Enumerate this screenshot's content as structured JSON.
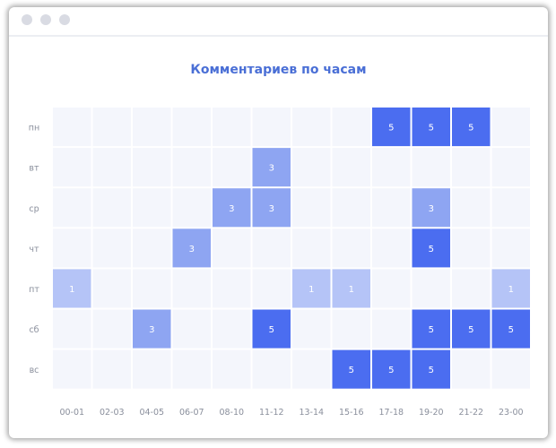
{
  "window": {
    "controls": [
      "close",
      "minimize",
      "maximize"
    ]
  },
  "chart_data": {
    "type": "heatmap",
    "title": "Комментариев по часам",
    "x": [
      "00-01",
      "02-03",
      "04-05",
      "06-07",
      "08-10",
      "11-12",
      "13-14",
      "15-16",
      "17-18",
      "19-20",
      "21-22",
      "23-00"
    ],
    "y": [
      "пн",
      "вт",
      "ср",
      "чт",
      "пт",
      "сб",
      "вс"
    ],
    "values": [
      [
        null,
        null,
        null,
        null,
        null,
        null,
        null,
        null,
        5,
        5,
        5,
        null
      ],
      [
        null,
        null,
        null,
        null,
        null,
        3,
        null,
        null,
        null,
        null,
        null,
        null
      ],
      [
        null,
        null,
        null,
        null,
        3,
        3,
        null,
        null,
        null,
        3,
        null,
        null
      ],
      [
        null,
        null,
        null,
        3,
        null,
        null,
        null,
        null,
        null,
        5,
        null,
        null
      ],
      [
        1,
        null,
        null,
        null,
        null,
        null,
        1,
        1,
        null,
        null,
        null,
        1
      ],
      [
        null,
        null,
        3,
        null,
        null,
        5,
        null,
        null,
        null,
        5,
        5,
        5
      ],
      [
        null,
        null,
        null,
        null,
        null,
        null,
        null,
        5,
        5,
        5,
        null,
        null
      ]
    ],
    "colors": {
      "empty": "#f4f6fc",
      "1": "#b5c4f7",
      "3": "#8ea5f2",
      "5": "#4b6df0",
      "title": "#4a6fd6"
    }
  }
}
